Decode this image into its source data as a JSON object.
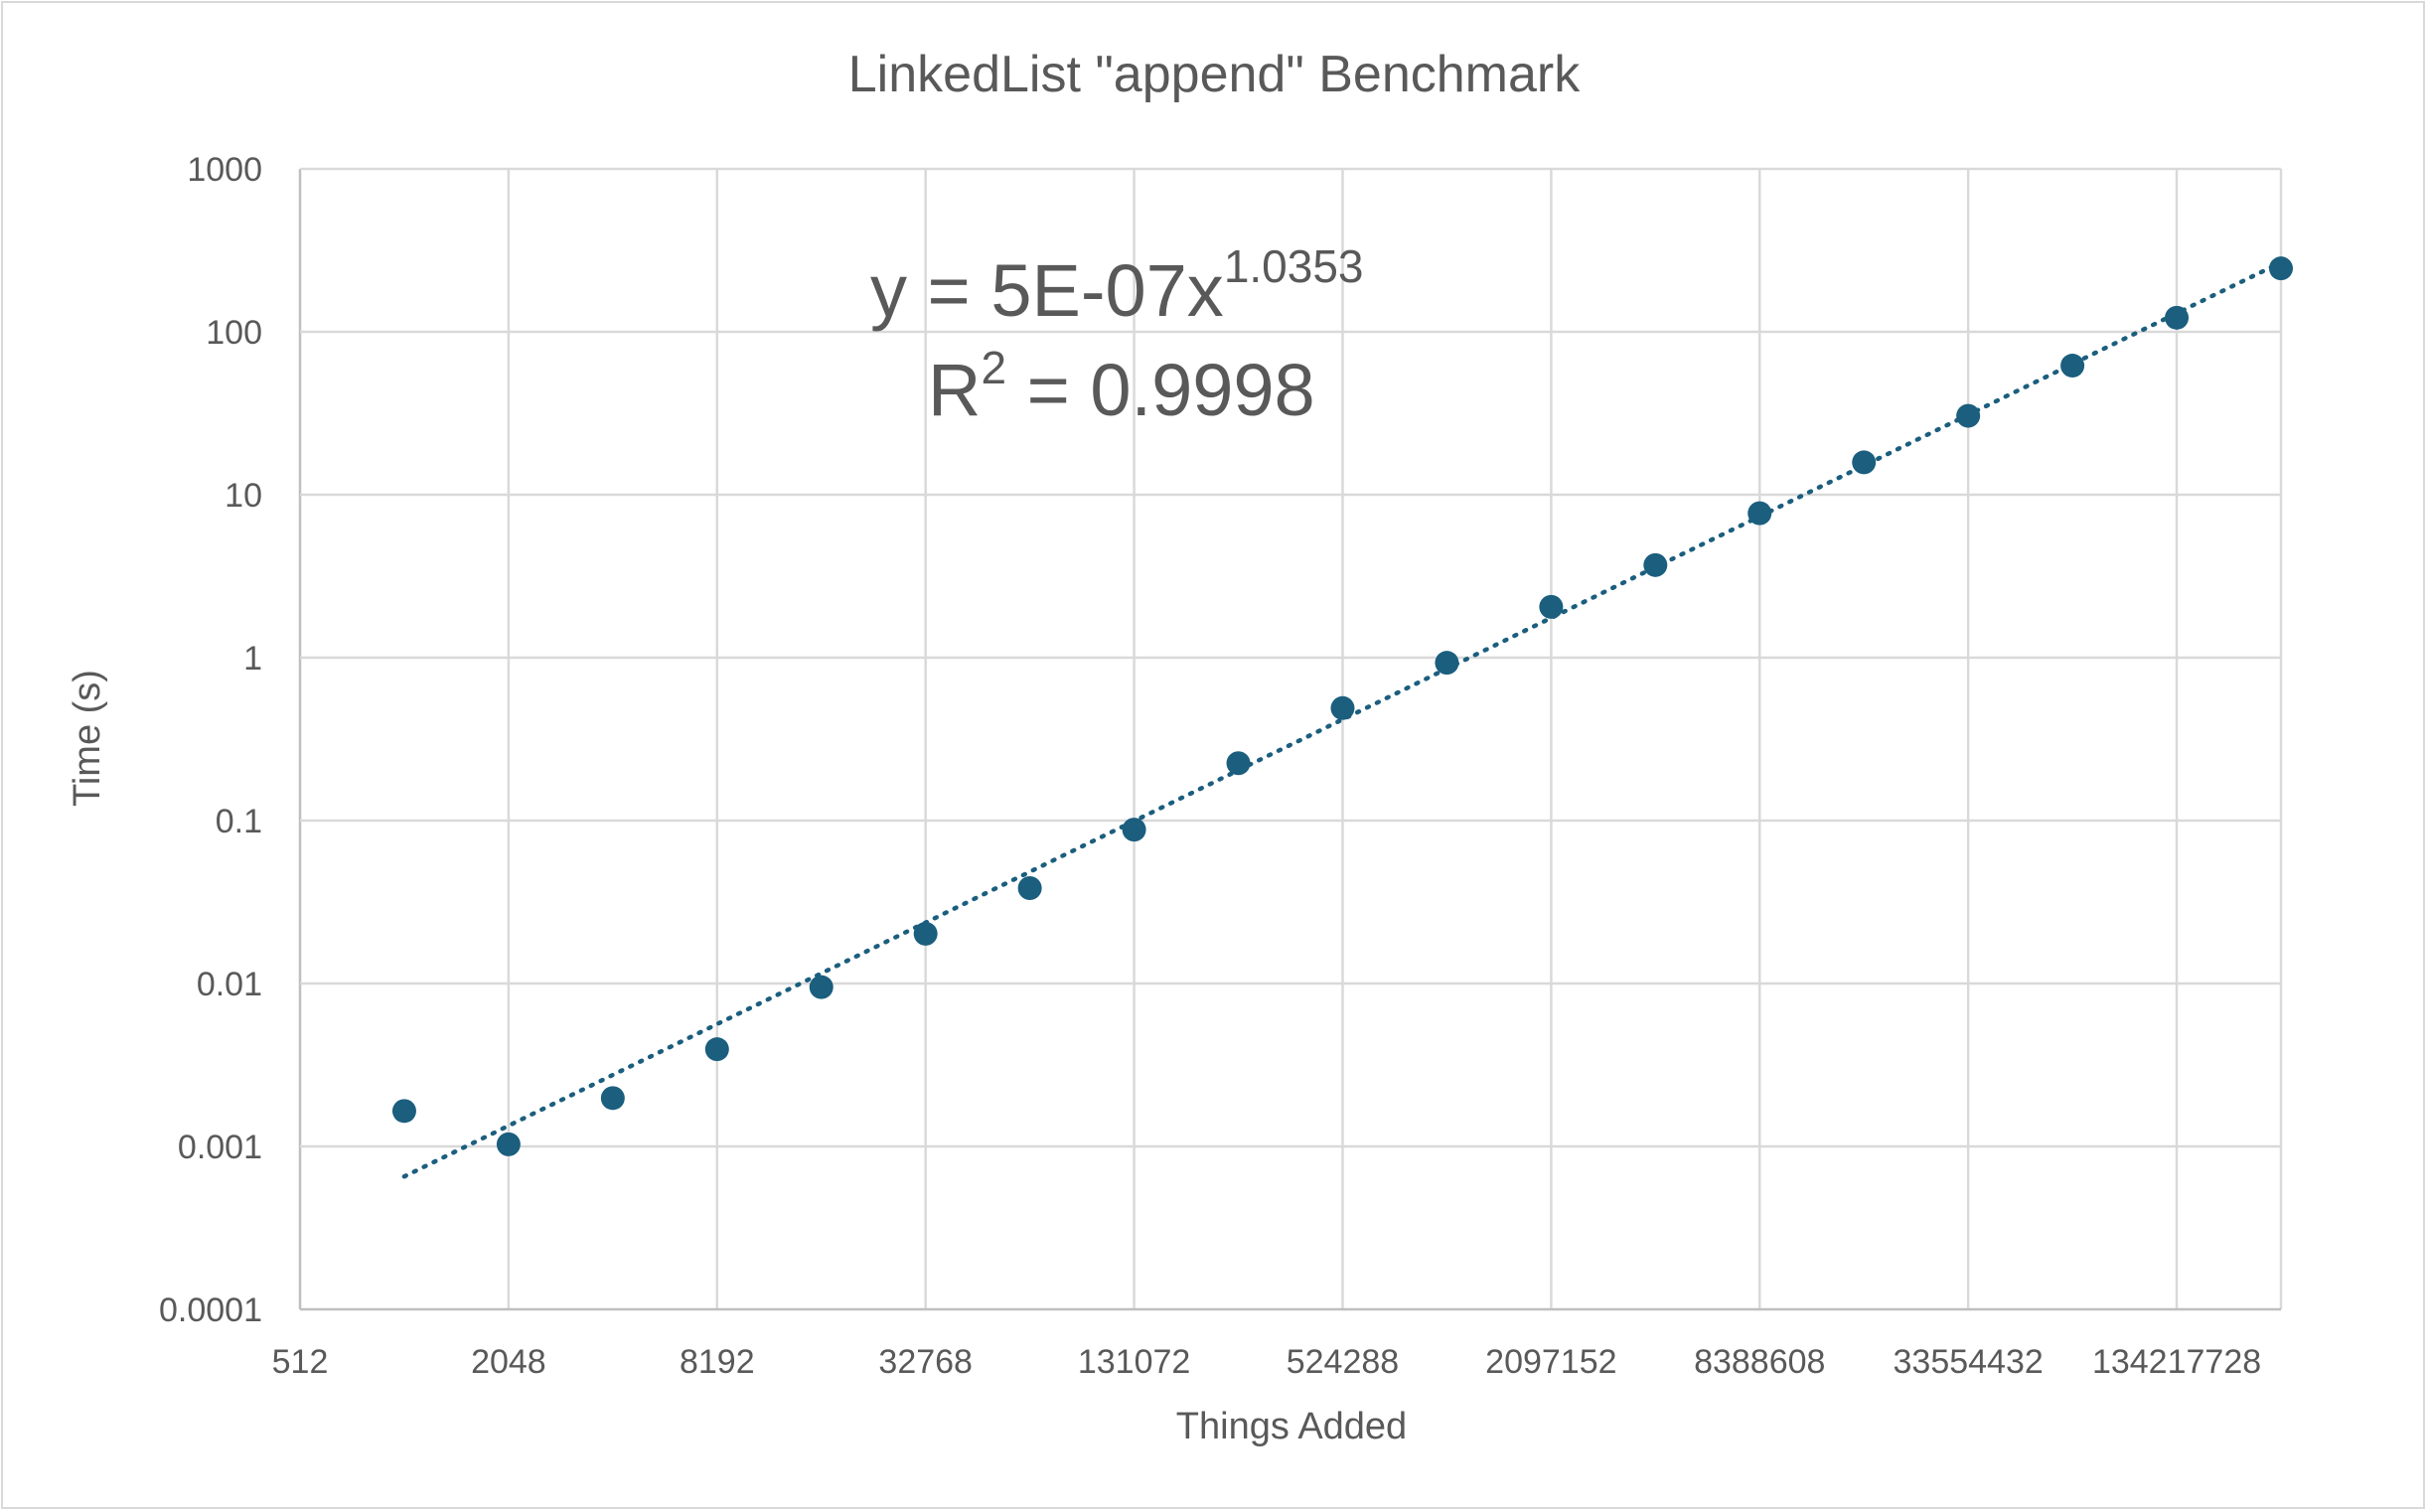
{
  "chart_data": {
    "type": "scatter",
    "title": "LinkedList \"append\" Benchmark",
    "xlabel": "Things Added",
    "ylabel": "Time (s)",
    "x_scale": "log2",
    "y_scale": "log10",
    "xlim": [
      512,
      268435456
    ],
    "ylim": [
      0.0001,
      1000
    ],
    "x_tick_labels": [
      "512",
      "2048",
      "8192",
      "32768",
      "131072",
      "524288",
      "2097152",
      "8388608",
      "33554432",
      "134217728"
    ],
    "y_tick_labels": [
      "1000",
      "100",
      "10",
      "1",
      "0.1",
      "0.01",
      "0.001",
      "0.0001"
    ],
    "grid": true,
    "point_color": "#1b5e7e",
    "series": [
      {
        "x": [
          1024,
          2048,
          4096,
          8192,
          16384,
          32768,
          65536,
          131072,
          262144,
          524288,
          1048576,
          2097152,
          4194304,
          8388608,
          16777216,
          33554432,
          67108864,
          134217728,
          268435456
        ],
        "y": [
          0.00165,
          0.00103,
          0.00198,
          0.00395,
          0.0095,
          0.0202,
          0.0385,
          0.088,
          0.225,
          0.49,
          0.93,
          2.05,
          3.7,
          7.7,
          15.8,
          30.5,
          62,
          122,
          245
        ]
      }
    ],
    "trendline": {
      "type": "power",
      "coefficient": 5e-07,
      "exponent": 1.0353,
      "style": "dotted",
      "equation_text": "y = 5E-07x",
      "equation_exponent": "1.0353",
      "r2_prefix": "R",
      "r2_superscript": "2",
      "r2_text": " = 0.9998"
    }
  }
}
